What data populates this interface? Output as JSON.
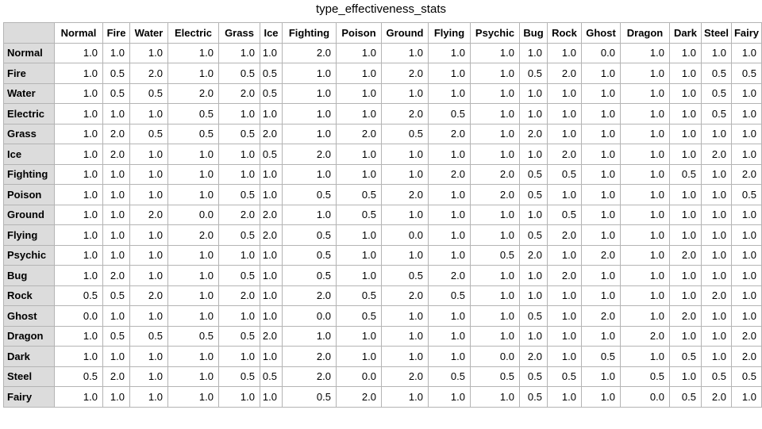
{
  "title": "type_effectiveness_stats",
  "chart_data": {
    "type": "table",
    "title": "type_effectiveness_stats",
    "columns": [
      "Normal",
      "Fire",
      "Water",
      "Electric",
      "Grass",
      "Ice",
      "Fighting",
      "Poison",
      "Ground",
      "Flying",
      "Psychic",
      "Bug",
      "Rock",
      "Ghost",
      "Dragon",
      "Dark",
      "Steel",
      "Fairy"
    ],
    "rows": [
      {
        "label": "Normal",
        "values": [
          "1.0",
          "1.0",
          "1.0",
          "1.0",
          "1.0",
          "1.0",
          "2.0",
          "1.0",
          "1.0",
          "1.0",
          "1.0",
          "1.0",
          "1.0",
          "0.0",
          "1.0",
          "1.0",
          "1.0",
          "1.0"
        ]
      },
      {
        "label": "Fire",
        "values": [
          "1.0",
          "0.5",
          "2.0",
          "1.0",
          "0.5",
          "0.5",
          "1.0",
          "1.0",
          "2.0",
          "1.0",
          "1.0",
          "0.5",
          "2.0",
          "1.0",
          "1.0",
          "1.0",
          "0.5",
          "0.5"
        ]
      },
      {
        "label": "Water",
        "values": [
          "1.0",
          "0.5",
          "0.5",
          "2.0",
          "2.0",
          "0.5",
          "1.0",
          "1.0",
          "1.0",
          "1.0",
          "1.0",
          "1.0",
          "1.0",
          "1.0",
          "1.0",
          "1.0",
          "0.5",
          "1.0"
        ]
      },
      {
        "label": "Electric",
        "values": [
          "1.0",
          "1.0",
          "1.0",
          "0.5",
          "1.0",
          "1.0",
          "1.0",
          "1.0",
          "2.0",
          "0.5",
          "1.0",
          "1.0",
          "1.0",
          "1.0",
          "1.0",
          "1.0",
          "0.5",
          "1.0"
        ]
      },
      {
        "label": "Grass",
        "values": [
          "1.0",
          "2.0",
          "0.5",
          "0.5",
          "0.5",
          "2.0",
          "1.0",
          "2.0",
          "0.5",
          "2.0",
          "1.0",
          "2.0",
          "1.0",
          "1.0",
          "1.0",
          "1.0",
          "1.0",
          "1.0"
        ]
      },
      {
        "label": "Ice",
        "values": [
          "1.0",
          "2.0",
          "1.0",
          "1.0",
          "1.0",
          "0.5",
          "2.0",
          "1.0",
          "1.0",
          "1.0",
          "1.0",
          "1.0",
          "2.0",
          "1.0",
          "1.0",
          "1.0",
          "2.0",
          "1.0"
        ]
      },
      {
        "label": "Fighting",
        "values": [
          "1.0",
          "1.0",
          "1.0",
          "1.0",
          "1.0",
          "1.0",
          "1.0",
          "1.0",
          "1.0",
          "2.0",
          "2.0",
          "0.5",
          "0.5",
          "1.0",
          "1.0",
          "0.5",
          "1.0",
          "2.0"
        ]
      },
      {
        "label": "Poison",
        "values": [
          "1.0",
          "1.0",
          "1.0",
          "1.0",
          "0.5",
          "1.0",
          "0.5",
          "0.5",
          "2.0",
          "1.0",
          "2.0",
          "0.5",
          "1.0",
          "1.0",
          "1.0",
          "1.0",
          "1.0",
          "0.5"
        ]
      },
      {
        "label": "Ground",
        "values": [
          "1.0",
          "1.0",
          "2.0",
          "0.0",
          "2.0",
          "2.0",
          "1.0",
          "0.5",
          "1.0",
          "1.0",
          "1.0",
          "1.0",
          "0.5",
          "1.0",
          "1.0",
          "1.0",
          "1.0",
          "1.0"
        ]
      },
      {
        "label": "Flying",
        "values": [
          "1.0",
          "1.0",
          "1.0",
          "2.0",
          "0.5",
          "2.0",
          "0.5",
          "1.0",
          "0.0",
          "1.0",
          "1.0",
          "0.5",
          "2.0",
          "1.0",
          "1.0",
          "1.0",
          "1.0",
          "1.0"
        ]
      },
      {
        "label": "Psychic",
        "values": [
          "1.0",
          "1.0",
          "1.0",
          "1.0",
          "1.0",
          "1.0",
          "0.5",
          "1.0",
          "1.0",
          "1.0",
          "0.5",
          "2.0",
          "1.0",
          "2.0",
          "1.0",
          "2.0",
          "1.0",
          "1.0"
        ]
      },
      {
        "label": "Bug",
        "values": [
          "1.0",
          "2.0",
          "1.0",
          "1.0",
          "0.5",
          "1.0",
          "0.5",
          "1.0",
          "0.5",
          "2.0",
          "1.0",
          "1.0",
          "2.0",
          "1.0",
          "1.0",
          "1.0",
          "1.0",
          "1.0"
        ]
      },
      {
        "label": "Rock",
        "values": [
          "0.5",
          "0.5",
          "2.0",
          "1.0",
          "2.0",
          "1.0",
          "2.0",
          "0.5",
          "2.0",
          "0.5",
          "1.0",
          "1.0",
          "1.0",
          "1.0",
          "1.0",
          "1.0",
          "2.0",
          "1.0"
        ]
      },
      {
        "label": "Ghost",
        "values": [
          "0.0",
          "1.0",
          "1.0",
          "1.0",
          "1.0",
          "1.0",
          "0.0",
          "0.5",
          "1.0",
          "1.0",
          "1.0",
          "0.5",
          "1.0",
          "2.0",
          "1.0",
          "2.0",
          "1.0",
          "1.0"
        ]
      },
      {
        "label": "Dragon",
        "values": [
          "1.0",
          "0.5",
          "0.5",
          "0.5",
          "0.5",
          "2.0",
          "1.0",
          "1.0",
          "1.0",
          "1.0",
          "1.0",
          "1.0",
          "1.0",
          "1.0",
          "2.0",
          "1.0",
          "1.0",
          "2.0"
        ]
      },
      {
        "label": "Dark",
        "values": [
          "1.0",
          "1.0",
          "1.0",
          "1.0",
          "1.0",
          "1.0",
          "2.0",
          "1.0",
          "1.0",
          "1.0",
          "0.0",
          "2.0",
          "1.0",
          "0.5",
          "1.0",
          "0.5",
          "1.0",
          "2.0"
        ]
      },
      {
        "label": "Steel",
        "values": [
          "0.5",
          "2.0",
          "1.0",
          "1.0",
          "0.5",
          "0.5",
          "2.0",
          "0.0",
          "2.0",
          "0.5",
          "0.5",
          "0.5",
          "0.5",
          "1.0",
          "0.5",
          "1.0",
          "0.5",
          "0.5"
        ]
      },
      {
        "label": "Fairy",
        "values": [
          "1.0",
          "1.0",
          "1.0",
          "1.0",
          "1.0",
          "1.0",
          "0.5",
          "2.0",
          "1.0",
          "1.0",
          "1.0",
          "0.5",
          "1.0",
          "1.0",
          "0.0",
          "0.5",
          "2.0",
          "1.0"
        ]
      }
    ]
  },
  "colors": {
    "header_bg": "#dcdcdc",
    "border": "#b4b4b4"
  }
}
